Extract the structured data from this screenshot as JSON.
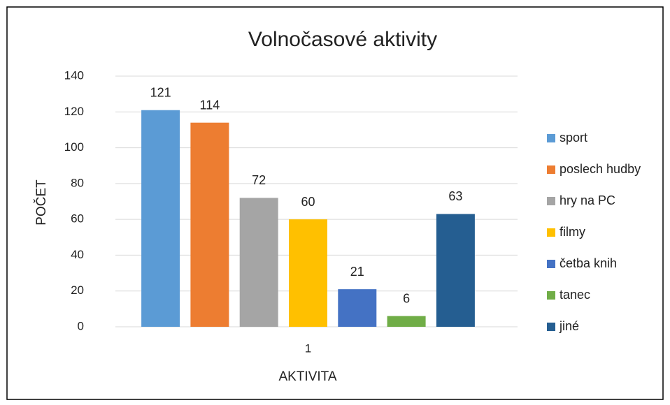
{
  "chart_data": {
    "type": "bar",
    "title": "Volnočasové aktivity",
    "categories": [
      "1"
    ],
    "series": [
      {
        "name": "sport",
        "color": "#5b9bd5",
        "values": [
          121
        ]
      },
      {
        "name": "poslech hudby",
        "color": "#ed7d31",
        "values": [
          114
        ]
      },
      {
        "name": "hry na PC",
        "color": "#a5a5a5",
        "values": [
          72
        ]
      },
      {
        "name": "filmy",
        "color": "#ffc000",
        "values": [
          60
        ]
      },
      {
        "name": "četba knih",
        "color": "#4472c4",
        "values": [
          21
        ]
      },
      {
        "name": "tanec",
        "color": "#70ad47",
        "values": [
          6
        ]
      },
      {
        "name": "jiné",
        "color": "#255e91",
        "values": [
          63
        ]
      }
    ],
    "xlabel": "AKTIVITA",
    "ylabel": "POČET",
    "ylim": [
      0,
      140
    ],
    "yticks": [
      0,
      20,
      40,
      60,
      80,
      100,
      120,
      140
    ],
    "grid": true,
    "legend": "right"
  }
}
